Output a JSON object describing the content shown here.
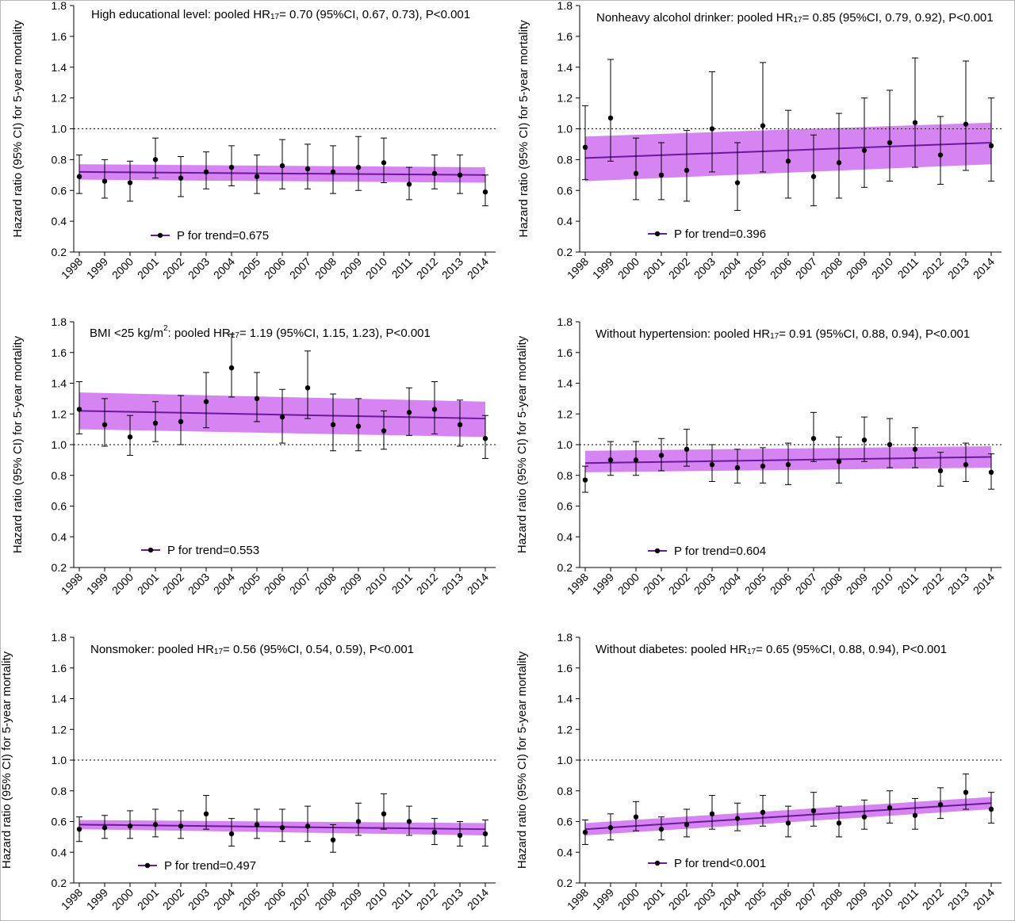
{
  "colors": {
    "band": "#cf6ef0",
    "trend_line": "#6a1a98",
    "points": "#000000",
    "reference_line": "#000000"
  },
  "chart_data": [
    {
      "type": "line",
      "title": {
        "prefix": "High educational level: pooled HR",
        "sub": "17",
        "suffix": "= 0.70 (95%CI, 0.67, 0.73), P<0.001"
      },
      "ylabel": "Hazard ratio (95% CI) for 5-year mortality",
      "ylim": [
        0.2,
        1.8
      ],
      "yticks": [
        "0.2",
        "0.4",
        "0.6",
        "0.8",
        "1.0",
        "1.2",
        "1.4",
        "1.6",
        "1.8"
      ],
      "reference_line": 1.0,
      "x": [
        "1998",
        "1999",
        "2000",
        "2001",
        "2002",
        "2003",
        "2004",
        "2005",
        "2006",
        "2007",
        "2008",
        "2009",
        "2010",
        "2011",
        "2012",
        "2013",
        "2014"
      ],
      "hr": [
        0.69,
        0.66,
        0.65,
        0.8,
        0.68,
        0.72,
        0.75,
        0.69,
        0.76,
        0.74,
        0.72,
        0.75,
        0.78,
        0.64,
        0.71,
        0.7,
        0.59
      ],
      "ci_low": [
        0.58,
        0.55,
        0.53,
        0.68,
        0.56,
        0.61,
        0.63,
        0.58,
        0.61,
        0.61,
        0.58,
        0.6,
        0.65,
        0.54,
        0.61,
        0.58,
        0.5
      ],
      "ci_high": [
        0.83,
        0.8,
        0.79,
        0.94,
        0.82,
        0.85,
        0.89,
        0.83,
        0.93,
        0.9,
        0.89,
        0.95,
        0.94,
        0.75,
        0.83,
        0.83,
        0.7
      ],
      "trend_fit": [
        0.72,
        0.7
      ],
      "band_low": [
        0.67,
        0.65
      ],
      "band_high": [
        0.77,
        0.75
      ],
      "legend": "P for trend=0.675"
    },
    {
      "type": "line",
      "title": {
        "prefix": "Nonheavy alcohol drinker: pooled HR",
        "sub": "17",
        "suffix": "= 0.85 (95%CI, 0.79, 0.92), P<0.001"
      },
      "ylabel": "Hazard ratio (95% CI) for 5-year mortality",
      "ylim": [
        0.2,
        1.8
      ],
      "yticks": [
        "0.2",
        "0.4",
        "0.6",
        "0.8",
        "1.0",
        "1.2",
        "1.4",
        "1.6",
        "1.8"
      ],
      "reference_line": 1.0,
      "x": [
        "1998",
        "1999",
        "2000",
        "2001",
        "2002",
        "2003",
        "2004",
        "2005",
        "2006",
        "2007",
        "2008",
        "2009",
        "2010",
        "2011",
        "2012",
        "2013",
        "2014"
      ],
      "hr": [
        0.88,
        1.07,
        0.71,
        0.7,
        0.73,
        1.0,
        0.65,
        1.02,
        0.79,
        0.69,
        0.78,
        0.86,
        0.91,
        1.04,
        0.83,
        1.03,
        0.89
      ],
      "ci_low": [
        0.67,
        0.79,
        0.54,
        0.54,
        0.53,
        0.72,
        0.47,
        0.72,
        0.55,
        0.5,
        0.55,
        0.62,
        0.66,
        0.75,
        0.64,
        0.73,
        0.66
      ],
      "ci_high": [
        1.15,
        1.45,
        0.94,
        0.91,
        0.99,
        1.37,
        0.91,
        1.43,
        1.12,
        0.96,
        1.1,
        1.2,
        1.25,
        1.46,
        1.08,
        1.44,
        1.2
      ],
      "trend_fit": [
        0.81,
        0.91
      ],
      "band_low": [
        0.66,
        0.77
      ],
      "band_high": [
        0.95,
        1.04
      ],
      "legend": "P for trend=0.396"
    },
    {
      "type": "line",
      "title": {
        "prefix": "BMI <25 kg/m",
        "sup": "2",
        "prefix2": ": pooled HR",
        "sub": "17",
        "suffix": "= 1.19 (95%CI, 1.15, 1.23), P<0.001"
      },
      "ylabel": "Hazard ratio (95% CI) for 5-year mortality",
      "ylim": [
        0.2,
        1.8
      ],
      "yticks": [
        "0.2",
        "0.4",
        "0.6",
        "0.8",
        "1.0",
        "1.2",
        "1.4",
        "1.6",
        "1.8"
      ],
      "reference_line": 1.0,
      "x": [
        "1998",
        "1999",
        "2000",
        "2001",
        "2002",
        "2003",
        "2004",
        "2005",
        "2006",
        "2007",
        "2008",
        "2009",
        "2010",
        "2011",
        "2012",
        "2013",
        "2014"
      ],
      "hr": [
        1.23,
        1.13,
        1.05,
        1.14,
        1.15,
        1.28,
        1.5,
        1.3,
        1.18,
        1.37,
        1.13,
        1.12,
        1.09,
        1.21,
        1.23,
        1.13,
        1.04
      ],
      "ci_low": [
        1.07,
        0.99,
        0.93,
        1.02,
        1.0,
        1.11,
        1.31,
        1.15,
        1.01,
        1.17,
        0.96,
        0.96,
        0.97,
        1.06,
        1.07,
        0.99,
        0.91
      ],
      "ci_high": [
        1.41,
        1.3,
        1.19,
        1.28,
        1.32,
        1.47,
        1.72,
        1.47,
        1.36,
        1.61,
        1.33,
        1.3,
        1.22,
        1.37,
        1.41,
        1.29,
        1.19
      ],
      "trend_fit": [
        1.22,
        1.17
      ],
      "band_low": [
        1.1,
        1.05
      ],
      "band_high": [
        1.34,
        1.28
      ],
      "legend": "P for trend=0.553"
    },
    {
      "type": "line",
      "title": {
        "prefix": "Without hypertension: pooled HR",
        "sub": "17",
        "suffix": "= 0.91 (95%CI, 0.88, 0.94), P<0.001"
      },
      "ylabel": "Hazard ratio (95% CI) for 5-year mortality",
      "ylim": [
        0.2,
        1.8
      ],
      "yticks": [
        "0.2",
        "0.4",
        "0.6",
        "0.8",
        "1.0",
        "1.2",
        "1.4",
        "1.6",
        "1.8"
      ],
      "reference_line": 1.0,
      "x": [
        "1998",
        "1999",
        "2000",
        "2001",
        "2002",
        "2003",
        "2004",
        "2005",
        "2006",
        "2007",
        "2008",
        "2009",
        "2010",
        "2011",
        "2012",
        "2013",
        "2014"
      ],
      "hr": [
        0.77,
        0.9,
        0.9,
        0.93,
        0.97,
        0.87,
        0.85,
        0.86,
        0.87,
        1.04,
        0.89,
        1.03,
        1.0,
        0.97,
        0.83,
        0.87,
        0.82
      ],
      "ci_low": [
        0.69,
        0.8,
        0.8,
        0.83,
        0.86,
        0.76,
        0.75,
        0.75,
        0.74,
        0.89,
        0.75,
        0.89,
        0.85,
        0.85,
        0.73,
        0.76,
        0.71
      ],
      "ci_high": [
        0.86,
        1.02,
        1.02,
        1.04,
        1.1,
        1.0,
        0.97,
        0.98,
        1.01,
        1.21,
        1.05,
        1.18,
        1.17,
        1.11,
        0.95,
        1.01,
        0.94
      ],
      "trend_fit": [
        0.88,
        0.92
      ],
      "band_low": [
        0.82,
        0.85
      ],
      "band_high": [
        0.96,
        0.99
      ],
      "legend": "P for trend=0.604"
    },
    {
      "type": "line",
      "title": {
        "prefix": "Nonsmoker: pooled HR",
        "sub": "17",
        "suffix": "= 0.56 (95%CI, 0.54, 0.59), P<0.001"
      },
      "ylabel": "Hazard ratio (95% CI) for 5-year mortality",
      "ylim": [
        0.2,
        1.8
      ],
      "yticks": [
        "0.2",
        "0.4",
        "0.6",
        "0.8",
        "1.0",
        "1.2",
        "1.4",
        "1.6",
        "1.8"
      ],
      "reference_line": 1.0,
      "x": [
        "1998",
        "1999",
        "2000",
        "2001",
        "2002",
        "2003",
        "2004",
        "2005",
        "2006",
        "2007",
        "2008",
        "2009",
        "2010",
        "2011",
        "2012",
        "2013",
        "2014"
      ],
      "hr": [
        0.55,
        0.56,
        0.57,
        0.58,
        0.57,
        0.65,
        0.52,
        0.58,
        0.56,
        0.57,
        0.48,
        0.6,
        0.65,
        0.6,
        0.53,
        0.51,
        0.52
      ],
      "ci_low": [
        0.47,
        0.49,
        0.49,
        0.5,
        0.49,
        0.55,
        0.44,
        0.49,
        0.47,
        0.47,
        0.4,
        0.51,
        0.55,
        0.51,
        0.45,
        0.44,
        0.44
      ],
      "ci_high": [
        0.63,
        0.64,
        0.67,
        0.68,
        0.67,
        0.77,
        0.62,
        0.68,
        0.68,
        0.7,
        0.58,
        0.72,
        0.78,
        0.7,
        0.62,
        0.6,
        0.61
      ],
      "trend_fit": [
        0.58,
        0.55
      ],
      "band_low": [
        0.55,
        0.51
      ],
      "band_high": [
        0.61,
        0.59
      ],
      "legend": "P for trend=0.497"
    },
    {
      "type": "line",
      "title": {
        "prefix": "Without diabetes: pooled HR",
        "sub": "17",
        "suffix": "= 0.65 (95%CI, 0.88, 0.94), P<0.001"
      },
      "ylabel": "Hazard ratio (95% CI) for 5-year mortality",
      "ylim": [
        0.2,
        1.8
      ],
      "yticks": [
        "0.2",
        "0.4",
        "0.6",
        "0.8",
        "1.0",
        "1.2",
        "1.4",
        "1.6",
        "1.8"
      ],
      "reference_line": 1.0,
      "x": [
        "1998",
        "1999",
        "2000",
        "2001",
        "2002",
        "2003",
        "2004",
        "2005",
        "2006",
        "2007",
        "2008",
        "2009",
        "2010",
        "2011",
        "2012",
        "2013",
        "2014"
      ],
      "hr": [
        0.53,
        0.56,
        0.63,
        0.55,
        0.58,
        0.65,
        0.62,
        0.66,
        0.59,
        0.67,
        0.59,
        0.63,
        0.69,
        0.64,
        0.71,
        0.79,
        0.68
      ],
      "ci_low": [
        0.45,
        0.48,
        0.54,
        0.48,
        0.5,
        0.55,
        0.54,
        0.57,
        0.5,
        0.57,
        0.5,
        0.55,
        0.59,
        0.55,
        0.62,
        0.68,
        0.59
      ],
      "ci_high": [
        0.61,
        0.65,
        0.73,
        0.63,
        0.68,
        0.77,
        0.72,
        0.77,
        0.7,
        0.79,
        0.7,
        0.74,
        0.8,
        0.75,
        0.82,
        0.91,
        0.79
      ],
      "trend_fit": [
        0.55,
        0.72
      ],
      "band_low": [
        0.51,
        0.68
      ],
      "band_high": [
        0.59,
        0.76
      ],
      "legend": "P for trend<0.001"
    }
  ]
}
